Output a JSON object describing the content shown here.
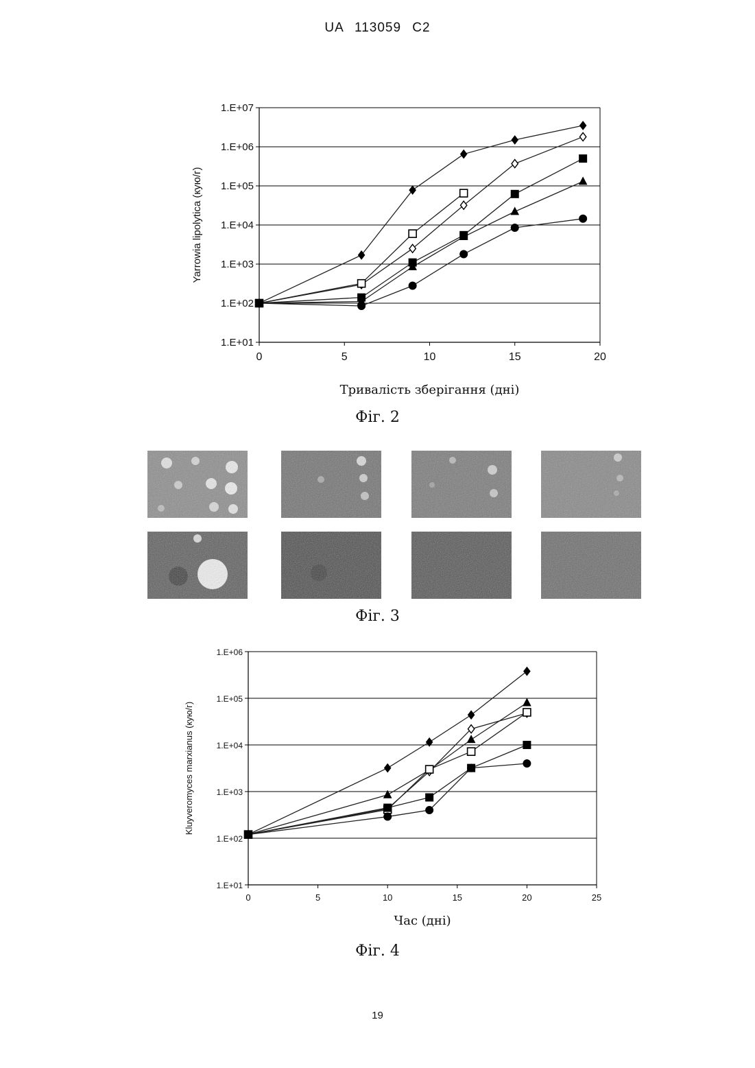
{
  "header": {
    "text": "UA   113059   C2"
  },
  "page_number": "19",
  "colors": {
    "line": "#222222",
    "grid": "#000000",
    "marker": "#000000"
  },
  "figures": [
    {
      "caption": "Фіг. 2"
    },
    {
      "caption": "Фіг. 3",
      "plates_rows": 2,
      "plates_cols": 4
    },
    {
      "caption": "Фіг. 4"
    }
  ],
  "chart_data": [
    {
      "type": "line",
      "y_scale": "log",
      "title": "",
      "xlabel": "Тривалість зберігання (дні)",
      "ylabel": "Yarrowia lipolytica  (кую/г)",
      "xlim": [
        0,
        20
      ],
      "x_ticks": [
        0,
        5,
        10,
        15,
        20
      ],
      "ylim": [
        10,
        10000000
      ],
      "y_ticks": [
        10,
        100,
        1000,
        10000,
        100000,
        1000000,
        10000000
      ],
      "y_tick_labels": [
        "1.E+01",
        "1.E+02",
        "1.E+03",
        "1.E+04",
        "1.E+05",
        "1.E+06",
        "1.E+07"
      ],
      "grid": "horizontal",
      "series": [
        {
          "marker": "filled-diamond",
          "x": [
            0,
            6,
            9,
            12,
            15,
            19
          ],
          "y": [
            100,
            1700,
            78000,
            650000,
            1500000,
            3500000
          ]
        },
        {
          "marker": "open-diamond",
          "x": [
            0,
            6,
            9,
            12,
            15,
            19
          ],
          "y": [
            100,
            300,
            2500,
            32000,
            370000,
            1800000
          ]
        },
        {
          "marker": "open-square",
          "x": [
            0,
            6,
            9,
            12
          ],
          "y": [
            100,
            320,
            6000,
            65000
          ]
        },
        {
          "marker": "filled-square",
          "x": [
            0,
            6,
            9,
            12,
            15,
            19
          ],
          "y": [
            100,
            140,
            1100,
            5500,
            62000,
            500000
          ]
        },
        {
          "marker": "filled-triangle",
          "x": [
            0,
            6,
            9,
            12,
            15,
            19
          ],
          "y": [
            100,
            110,
            850,
            5000,
            22000,
            130000
          ]
        },
        {
          "marker": "filled-circle",
          "x": [
            0,
            6,
            9,
            12,
            15,
            19
          ],
          "y": [
            100,
            85,
            280,
            1800,
            8500,
            14500
          ]
        }
      ]
    },
    {
      "type": "line",
      "y_scale": "log",
      "title": "",
      "xlabel": "Час (дні)",
      "ylabel": "Kluyveromyces marxianus  (кую/г)",
      "xlim": [
        0,
        25
      ],
      "x_ticks": [
        0,
        5,
        10,
        15,
        20,
        25
      ],
      "ylim": [
        10,
        1000000
      ],
      "y_ticks": [
        10,
        100,
        1000,
        10000,
        100000,
        1000000
      ],
      "y_tick_labels": [
        "1.E+01",
        "1.E+02",
        "1.E+03",
        "1.E+04",
        "1.E+05",
        "1.E+06"
      ],
      "grid": "horizontal",
      "series": [
        {
          "marker": "filled-diamond",
          "x": [
            0,
            10,
            13,
            16,
            20
          ],
          "y": [
            120,
            3200,
            11500,
            44000,
            380000
          ]
        },
        {
          "marker": "filled-triangle",
          "x": [
            0,
            10,
            13,
            16,
            20
          ],
          "y": [
            120,
            850,
            2900,
            13000,
            80000
          ]
        },
        {
          "marker": "open-diamond",
          "x": [
            0,
            10,
            13,
            16,
            20
          ],
          "y": [
            120,
            430,
            2700,
            22000,
            48000
          ]
        },
        {
          "marker": "open-square",
          "x": [
            0,
            10,
            13,
            16,
            20
          ],
          "y": [
            120,
            410,
            3000,
            7200,
            50000
          ]
        },
        {
          "marker": "filled-square",
          "x": [
            0,
            10,
            13,
            16,
            20
          ],
          "y": [
            120,
            450,
            750,
            3200,
            10000
          ]
        },
        {
          "marker": "filled-circle",
          "x": [
            0,
            10,
            13,
            16,
            20
          ],
          "y": [
            120,
            290,
            400,
            3200,
            4000
          ]
        }
      ]
    }
  ]
}
